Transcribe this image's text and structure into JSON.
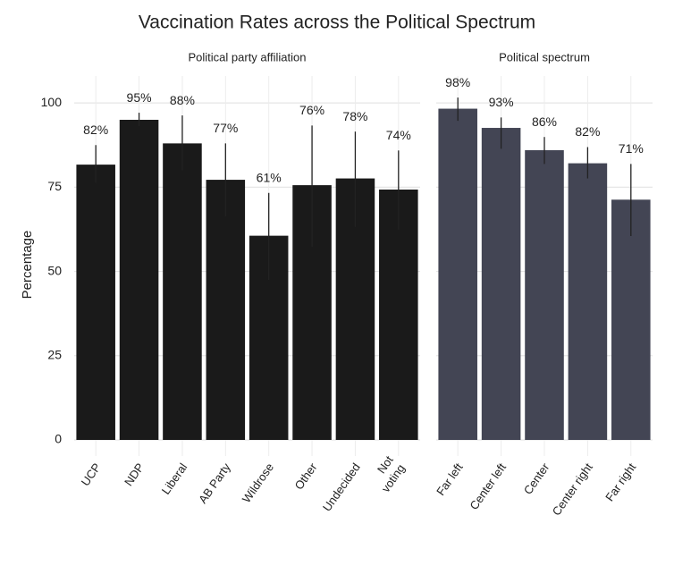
{
  "title": "Vaccination Rates across the Political Spectrum",
  "y_label": "Percentage",
  "chart_data": [
    {
      "type": "bar",
      "subtitle": "Political party affiliation",
      "color": "#1a1a1a",
      "categories": [
        "UCP",
        "NDP",
        "Liberal",
        "AB Party",
        "Wildrose",
        "Other",
        "Undecided",
        "Not\nvoting"
      ],
      "values": [
        81.7,
        95,
        88,
        77.2,
        60.6,
        75.6,
        77.6,
        74.3
      ],
      "value_labels": [
        "82%",
        "95%",
        "88%",
        "77%",
        "61%",
        "76%",
        "78%",
        "74%"
      ],
      "ci": [
        [
          76.3,
          87.5
        ],
        [
          93.1,
          97.1
        ],
        [
          80,
          96.3
        ],
        [
          66.4,
          88
        ],
        [
          47.5,
          73.3
        ],
        [
          57.3,
          93.3
        ],
        [
          63.2,
          91.5
        ],
        [
          62.4,
          85.9
        ]
      ],
      "ylim": [
        0,
        108
      ],
      "yticks": [
        0,
        25,
        50,
        75,
        100
      ],
      "grid": true
    },
    {
      "type": "bar",
      "subtitle": "Political spectrum",
      "color": "#434554",
      "categories": [
        "Far left",
        "Center left",
        "Center",
        "Center right",
        "Far right"
      ],
      "values": [
        98.3,
        92.6,
        86,
        82.1,
        71.3
      ],
      "value_labels": [
        "98%",
        "93%",
        "86%",
        "82%",
        "71%"
      ],
      "ci": [
        [
          94.7,
          101.6
        ],
        [
          86.4,
          95.7
        ],
        [
          81.9,
          89.9
        ],
        [
          77.6,
          86.9
        ],
        [
          60.5,
          81.9
        ]
      ],
      "ylim": [
        0,
        108
      ],
      "yticks": [
        0,
        25,
        50,
        75,
        100
      ],
      "grid": true
    }
  ]
}
